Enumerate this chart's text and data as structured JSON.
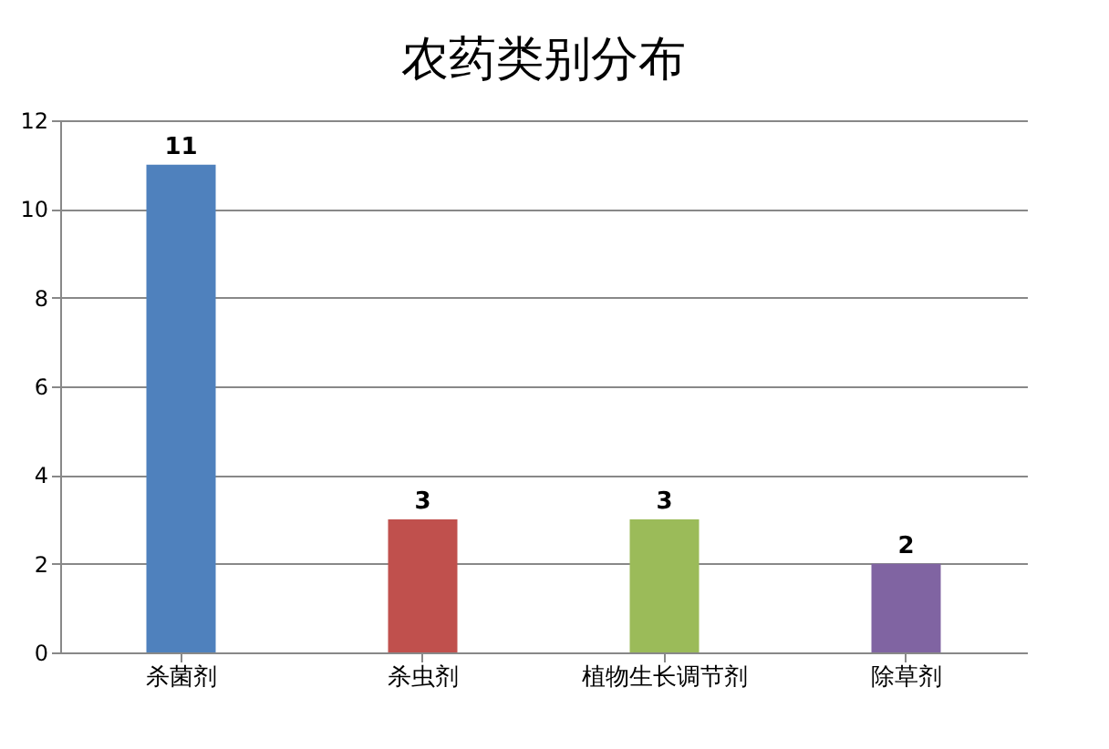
{
  "chart_data": {
    "type": "bar",
    "title": "农药类别分布",
    "categories": [
      "杀菌剂",
      "杀虫剂",
      "植物生长调节剂",
      "除草剂"
    ],
    "values": [
      11,
      3,
      3,
      2
    ],
    "colors": [
      "#4f81bd",
      "#c0504d",
      "#9bbb59",
      "#8064a2"
    ],
    "ylim": [
      0,
      12
    ],
    "yticks": [
      0,
      2,
      4,
      6,
      8,
      10,
      12
    ],
    "grid": "y",
    "data_labels": true
  }
}
